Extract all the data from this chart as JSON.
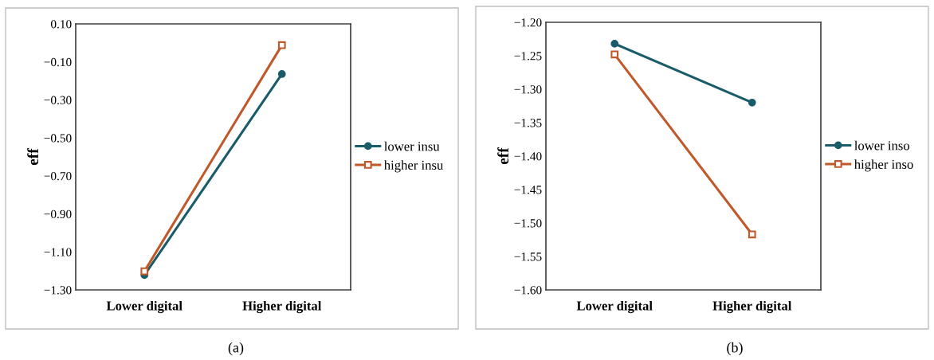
{
  "chart_data": [
    {
      "type": "line",
      "ylabel": "eff",
      "categories": [
        "Lower digital",
        "Higher digital"
      ],
      "series": [
        {
          "name": "lower insu",
          "color": "#1b5c6b",
          "marker": "circle",
          "values": [
            -1.222,
            -0.164
          ]
        },
        {
          "name": "higher insu",
          "color": "#c0582a",
          "marker": "square",
          "values": [
            -1.202,
            -0.012
          ]
        }
      ],
      "ylim": [
        -1.3,
        0.1
      ],
      "yticks": [
        {
          "value": -1.3,
          "label": "−1.30"
        },
        {
          "value": -1.1,
          "label": "−1.10"
        },
        {
          "value": -0.9,
          "label": "−0.90"
        },
        {
          "value": -0.7,
          "label": "−0.70"
        },
        {
          "value": -0.5,
          "label": "−0.50"
        },
        {
          "value": -0.3,
          "label": "−0.30"
        },
        {
          "value": -0.1,
          "label": "−0.10"
        },
        {
          "value": 0.1,
          "label": "0.10"
        }
      ],
      "grid": false,
      "legend": "right",
      "line_style": "solid",
      "annotations": [
        "(a)"
      ]
    },
    {
      "type": "line",
      "ylabel": "eff",
      "categories": [
        "Lower digital",
        "Higher digital"
      ],
      "series": [
        {
          "name": "lower inso",
          "color": "#1b5c6b",
          "marker": "circle",
          "values": [
            -1.232,
            -1.32
          ]
        },
        {
          "name": "higher inso",
          "color": "#c0582a",
          "marker": "square",
          "values": [
            -1.248,
            -1.517
          ]
        }
      ],
      "ylim": [
        -1.6,
        -1.2
      ],
      "yticks": [
        {
          "value": -1.6,
          "label": "−1.60"
        },
        {
          "value": -1.55,
          "label": "−1.55"
        },
        {
          "value": -1.5,
          "label": "−1.50"
        },
        {
          "value": -1.45,
          "label": "−1.45"
        },
        {
          "value": -1.4,
          "label": "−1.40"
        },
        {
          "value": -1.35,
          "label": "−1.35"
        },
        {
          "value": -1.3,
          "label": "−1.30"
        },
        {
          "value": -1.25,
          "label": "−1.25"
        },
        {
          "value": -1.2,
          "label": "−1.20"
        }
      ],
      "grid": false,
      "legend": "right",
      "line_style": "solid",
      "annotations": [
        "(b)"
      ]
    }
  ]
}
